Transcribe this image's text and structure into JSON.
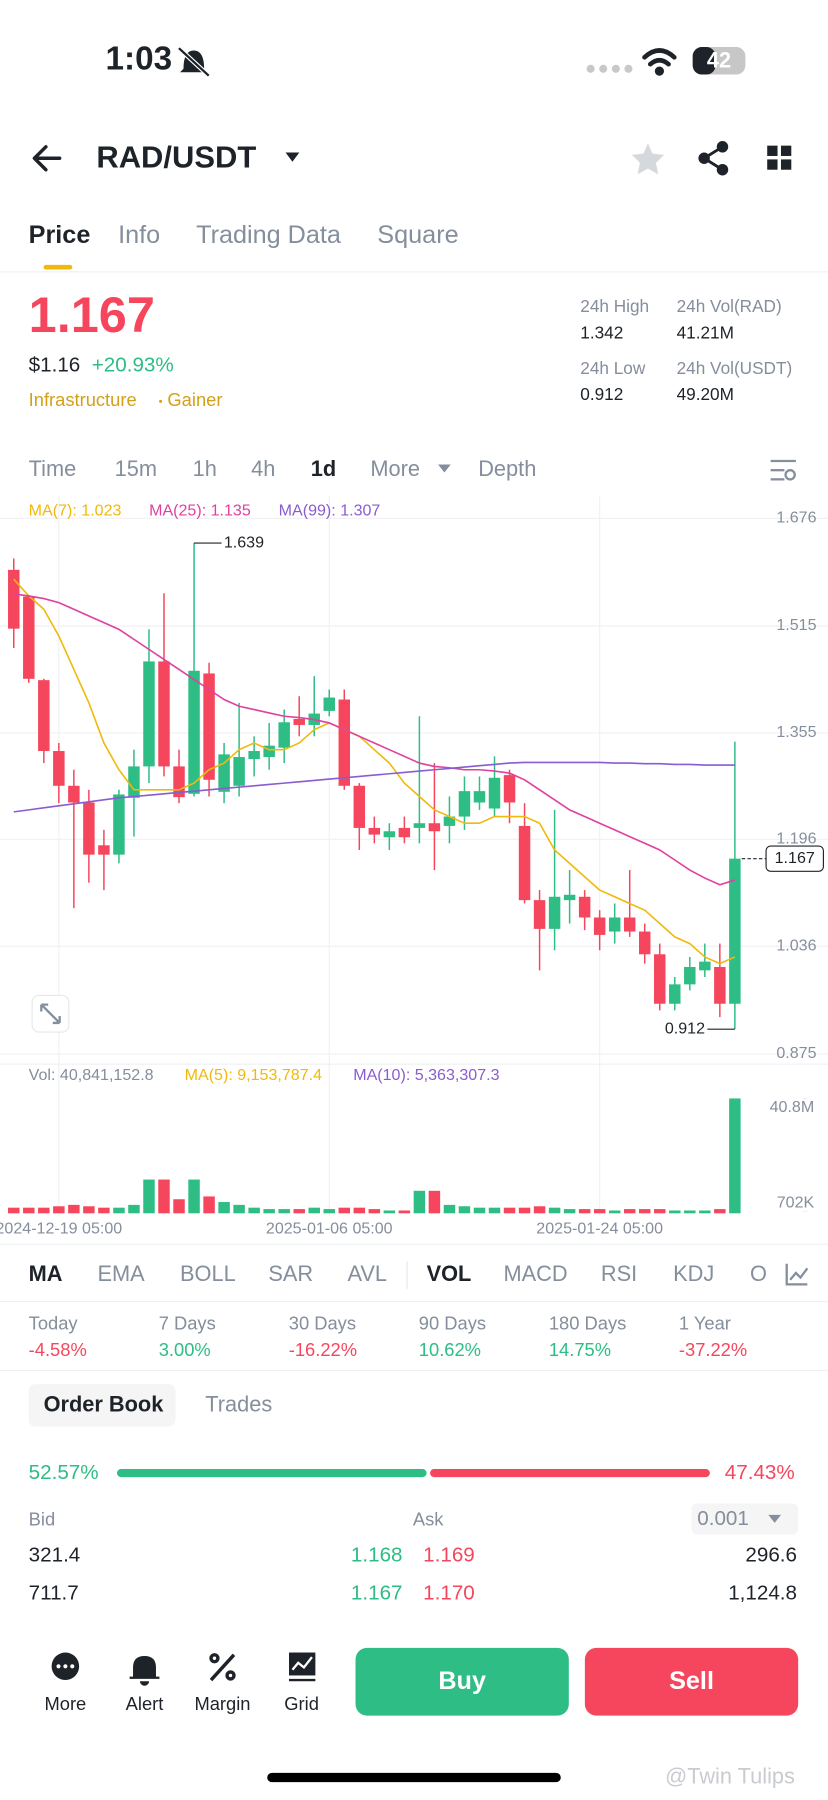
{
  "status_bar": {
    "time": "1:03",
    "battery": "42"
  },
  "header": {
    "pair": "RAD/USDT"
  },
  "tabs": [
    "Price",
    "Info",
    "Trading Data",
    "Square"
  ],
  "price": {
    "last": "1.167",
    "usd": "$1.16",
    "change": "+20.93%",
    "tags": [
      "Infrastructure",
      "Gainer"
    ]
  },
  "stats": [
    {
      "label": "24h High",
      "value": "1.342"
    },
    {
      "label": "24h Vol(RAD)",
      "value": "41.21M"
    },
    {
      "label": "24h Low",
      "value": "0.912"
    },
    {
      "label": "24h Vol(USDT)",
      "value": "49.20M"
    }
  ],
  "intervals": [
    "Time",
    "15m",
    "1h",
    "4h",
    "1d",
    "More",
    "Depth"
  ],
  "chart_data": {
    "type": "candlestick",
    "categories": [
      null,
      null,
      null,
      "2024-12-19 05:00",
      null,
      null,
      null,
      null,
      null,
      null,
      null,
      null,
      null,
      null,
      null,
      null,
      null,
      null,
      null,
      null,
      null,
      "2025-01-06 05:00",
      null,
      null,
      null,
      null,
      null,
      null,
      null,
      null,
      null,
      null,
      null,
      null,
      null,
      null,
      null,
      null,
      null,
      "2025-01-24 05:00",
      null,
      null,
      null,
      null,
      null,
      null,
      null,
      null,
      null
    ],
    "open": [
      1.599,
      1.559,
      1.434,
      1.328,
      1.276,
      1.251,
      1.187,
      1.173,
      1.258,
      1.305,
      1.462,
      1.305,
      1.264,
      1.444,
      1.267,
      1.276,
      1.316,
      1.319,
      1.333,
      1.376,
      1.367,
      1.388,
      1.405,
      1.276,
      1.213,
      1.199,
      1.213,
      1.213,
      1.22,
      1.216,
      1.23,
      1.251,
      1.242,
      1.292,
      1.216,
      1.105,
      1.062,
      1.105,
      1.11,
      1.079,
      1.058,
      1.079,
      1.058,
      1.024,
      0.95,
      0.979,
      1.0,
      1.005,
      0.95
    ],
    "high": [
      1.616,
      1.56,
      1.436,
      1.34,
      1.3,
      1.27,
      1.21,
      1.27,
      1.33,
      1.51,
      1.564,
      1.33,
      1.639,
      1.46,
      1.34,
      1.4,
      1.35,
      1.37,
      1.39,
      1.41,
      1.44,
      1.42,
      1.42,
      1.28,
      1.23,
      1.22,
      1.23,
      1.38,
      1.31,
      1.26,
      1.29,
      1.29,
      1.32,
      1.3,
      1.25,
      1.12,
      1.24,
      1.15,
      1.12,
      1.09,
      1.1,
      1.15,
      1.07,
      1.04,
      0.99,
      1.02,
      1.04,
      1.04,
      1.342
    ],
    "low": [
      1.482,
      1.43,
      1.31,
      1.25,
      1.093,
      1.131,
      1.12,
      1.16,
      1.2,
      1.28,
      1.29,
      1.25,
      1.26,
      1.26,
      1.25,
      1.26,
      1.29,
      1.3,
      1.31,
      1.35,
      1.35,
      1.38,
      1.27,
      1.18,
      1.19,
      1.18,
      1.19,
      1.19,
      1.15,
      1.19,
      1.21,
      1.24,
      1.23,
      1.22,
      1.1,
      1.0,
      1.03,
      1.07,
      1.06,
      1.03,
      1.04,
      1.05,
      1.01,
      0.94,
      0.94,
      0.97,
      0.99,
      0.93,
      0.912
    ],
    "close": [
      1.511,
      1.436,
      1.328,
      1.276,
      1.251,
      1.173,
      1.173,
      1.263,
      1.305,
      1.462,
      1.305,
      1.259,
      1.448,
      1.285,
      1.323,
      1.319,
      1.328,
      1.336,
      1.371,
      1.367,
      1.384,
      1.408,
      1.276,
      1.213,
      1.203,
      1.208,
      1.199,
      1.22,
      1.208,
      1.23,
      1.268,
      1.268,
      1.288,
      1.251,
      1.105,
      1.062,
      1.11,
      1.113,
      1.079,
      1.053,
      1.079,
      1.058,
      1.024,
      0.95,
      0.979,
      1.005,
      1.013,
      0.95,
      1.167
    ],
    "up_color": "#2ebd85",
    "down_color": "#f6465d",
    "series": [
      {
        "name": "MA(7): 1.023",
        "color": "#f0b90b",
        "values": [
          1.585,
          1.56,
          1.54,
          1.5,
          1.45,
          1.4,
          1.34,
          1.3,
          1.27,
          1.27,
          1.27,
          1.27,
          1.28,
          1.3,
          1.31,
          1.33,
          1.34,
          1.33,
          1.33,
          1.34,
          1.36,
          1.37,
          1.36,
          1.35,
          1.33,
          1.31,
          1.28,
          1.26,
          1.24,
          1.23,
          1.22,
          1.22,
          1.23,
          1.23,
          1.23,
          1.22,
          1.18,
          1.16,
          1.14,
          1.12,
          1.11,
          1.1,
          1.09,
          1.07,
          1.05,
          1.04,
          1.02,
          1.01,
          1.02
        ]
      },
      {
        "name": "MA(25): 1.135",
        "color": "#e0409f",
        "values": [
          1.563,
          1.56,
          1.556,
          1.55,
          1.54,
          1.53,
          1.52,
          1.51,
          1.495,
          1.48,
          1.465,
          1.45,
          1.435,
          1.42,
          1.405,
          1.395,
          1.39,
          1.385,
          1.38,
          1.378,
          1.375,
          1.37,
          1.36,
          1.35,
          1.34,
          1.33,
          1.32,
          1.31,
          1.305,
          1.303,
          1.3,
          1.3,
          1.298,
          1.295,
          1.285,
          1.27,
          1.255,
          1.24,
          1.23,
          1.22,
          1.21,
          1.2,
          1.19,
          1.18,
          1.165,
          1.15,
          1.138,
          1.128,
          1.135
        ]
      },
      {
        "name": "MA(99): 1.307",
        "color": "#8a5cd1",
        "values": [
          1.237,
          1.24,
          1.243,
          1.246,
          1.249,
          1.252,
          1.255,
          1.258,
          1.26,
          1.262,
          1.264,
          1.266,
          1.268,
          1.27,
          1.272,
          1.274,
          1.276,
          1.278,
          1.28,
          1.282,
          1.284,
          1.286,
          1.288,
          1.29,
          1.292,
          1.294,
          1.296,
          1.298,
          1.3,
          1.302,
          1.304,
          1.306,
          1.308,
          1.31,
          1.311,
          1.311,
          1.311,
          1.311,
          1.311,
          1.311,
          1.31,
          1.31,
          1.309,
          1.309,
          1.308,
          1.308,
          1.307,
          1.307,
          1.307
        ]
      }
    ],
    "ylim": [
      0.875,
      1.676
    ],
    "yticks": [
      1.676,
      1.515,
      1.355,
      1.196,
      1.036,
      0.875
    ],
    "annotations": {
      "high": 1.639,
      "low": 0.912,
      "last": 1.167
    },
    "volume": {
      "legend": [
        "Vol: 40,841,152.8",
        "MA(5): 9,153,787.4",
        "MA(10): 5,363,307.3"
      ],
      "values": [
        2000000,
        2000000,
        2000000,
        2500000,
        3000000,
        2500000,
        2000000,
        2000000,
        3000000,
        12000000,
        12000000,
        5000000,
        12000000,
        6000000,
        4000000,
        3000000,
        2000000,
        1500000,
        1500000,
        1500000,
        2000000,
        1500000,
        2000000,
        2000000,
        1500000,
        1000000,
        1000000,
        8000000,
        8000000,
        3000000,
        2500000,
        2000000,
        2000000,
        2000000,
        2000000,
        2500000,
        2000000,
        1500000,
        1500000,
        1500000,
        1000000,
        1500000,
        1500000,
        1500000,
        1000000,
        1000000,
        1000000,
        1500000,
        40841152.8
      ],
      "ylim": [
        0,
        42000000
      ],
      "yticks": [
        {
          "value": 40800000,
          "label": "40.8M"
        },
        {
          "value": 702000,
          "label": "702K"
        }
      ]
    }
  },
  "indicators": [
    "MA",
    "EMA",
    "BOLL",
    "SAR",
    "AVL",
    "VOL",
    "MACD",
    "RSI",
    "KDJ",
    "O"
  ],
  "performance": [
    {
      "label": "Today",
      "value": "-4.58%"
    },
    {
      "label": "7 Days",
      "value": "3.00%"
    },
    {
      "label": "30 Days",
      "value": "-16.22%"
    },
    {
      "label": "90 Days",
      "value": "10.62%"
    },
    {
      "label": "180 Days",
      "value": "14.75%"
    },
    {
      "label": "1 Year",
      "value": "-37.22%"
    }
  ],
  "order_book": {
    "tabs": [
      "Order Book",
      "Trades"
    ],
    "bid_pct": "52.57%",
    "ask_pct": "47.43%",
    "bid_label": "Bid",
    "ask_label": "Ask",
    "precision": "0.001",
    "rows": [
      [
        "321.4",
        "1.168",
        "1.169",
        "296.6"
      ],
      [
        "711.7",
        "1.167",
        "1.170",
        "1,124.8"
      ]
    ]
  },
  "bottom_bar": {
    "items": [
      "More",
      "Alert",
      "Margin",
      "Grid"
    ],
    "buy": "Buy",
    "sell": "Sell"
  },
  "watermark": "@Twin Tulips"
}
